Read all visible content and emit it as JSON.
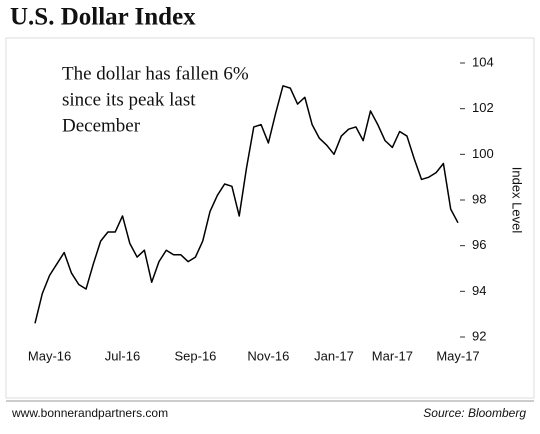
{
  "chart_data": {
    "type": "line",
    "title": "U.S. Dollar Index",
    "annotation": [
      "The dollar has fallen 6%",
      "since its peak last",
      "December"
    ],
    "y_label": "Index Level",
    "source": "Source: Bloomberg",
    "website": "www.bonnerandpartners.com",
    "categories": [
      null,
      null,
      "May-16",
      null,
      null,
      null,
      null,
      null,
      null,
      null,
      null,
      null,
      "Jul-16",
      null,
      null,
      null,
      null,
      null,
      null,
      null,
      null,
      null,
      "Sep-16",
      null,
      null,
      null,
      null,
      null,
      null,
      null,
      null,
      null,
      "Nov-16",
      null,
      null,
      null,
      null,
      null,
      null,
      null,
      null,
      "Jan-17",
      null,
      null,
      null,
      null,
      null,
      null,
      null,
      "Mar-17",
      null,
      null,
      null,
      null,
      null,
      null,
      null,
      null,
      "May-17"
    ],
    "series": [
      {
        "color": "#000000",
        "values": [
          92.6,
          93.9,
          94.7,
          95.2,
          95.7,
          94.8,
          94.3,
          94.1,
          95.2,
          96.2,
          96.6,
          96.6,
          97.3,
          96.1,
          95.5,
          95.8,
          94.4,
          95.3,
          95.8,
          95.6,
          95.6,
          95.3,
          95.5,
          96.2,
          97.5,
          98.2,
          98.7,
          98.6,
          97.3,
          99.4,
          101.2,
          101.3,
          100.5,
          101.8,
          103.0,
          102.9,
          102.2,
          102.5,
          101.3,
          100.7,
          100.4,
          100.0,
          100.8,
          101.1,
          101.2,
          100.6,
          101.9,
          101.3,
          100.6,
          100.3,
          101.0,
          100.8,
          99.8,
          98.9,
          99.0,
          99.2,
          99.6,
          97.6,
          97.0
        ]
      }
    ],
    "ylim": [
      92,
      104
    ],
    "yticks": [
      92,
      94,
      96,
      98,
      100,
      102,
      104
    ],
    "grid": false
  }
}
